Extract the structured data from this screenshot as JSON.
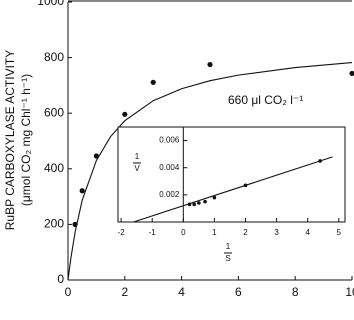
{
  "chart_data": [
    {
      "type": "scatter",
      "y_label": [
        "RuBP CARBOXYLASE ACTIVITY",
        "(μmol CO₂ mg Chl⁻¹ h⁻¹)"
      ],
      "annotation": "660 μl CO₂ l⁻¹",
      "xlim": [
        0,
        10
      ],
      "xticks": [
        0,
        2,
        4,
        6,
        8,
        10
      ],
      "ylim": [
        0,
        1000
      ],
      "yticks": [
        0,
        200,
        400,
        600,
        800,
        1000
      ],
      "series": [
        {
          "style": "points",
          "color": "#111111",
          "x": [
            0.25,
            0.5,
            1,
            2,
            3,
            5,
            10
          ],
          "values": [
            200,
            321,
            446,
            596,
            711,
            775,
            743
          ]
        },
        {
          "style": "line",
          "color": "#111111",
          "x": [
            0,
            0.1,
            0.25,
            0.5,
            1,
            1.5,
            2,
            3,
            4,
            5,
            6,
            8,
            10
          ],
          "values": [
            0,
            78,
            172,
            287,
            430,
            516,
            573,
            645,
            688,
            717,
            737,
            764,
            782
          ]
        }
      ]
    },
    {
      "type": "scatter",
      "x_label": [
        "1",
        "S"
      ],
      "y_label": [
        "1",
        "V"
      ],
      "xlim": [
        -2.1,
        5.2
      ],
      "xticks": [
        -2,
        -1,
        0,
        1,
        2,
        3,
        4,
        5
      ],
      "ylim": [
        0,
        0.007
      ],
      "yticks": [
        0.002,
        0.004,
        0.006
      ],
      "series": [
        {
          "style": "points",
          "color": "#111111",
          "x": [
            0.2,
            0.35,
            0.5,
            0.7,
            1,
            2,
            4.4
          ],
          "values": [
            0.0013,
            0.0013,
            0.0014,
            0.0015,
            0.0018,
            0.0027,
            0.0045
          ]
        },
        {
          "style": "line",
          "color": "#111111",
          "x": [
            -1.6,
            4.8
          ],
          "values": [
            0,
            0.0048
          ]
        }
      ]
    }
  ]
}
